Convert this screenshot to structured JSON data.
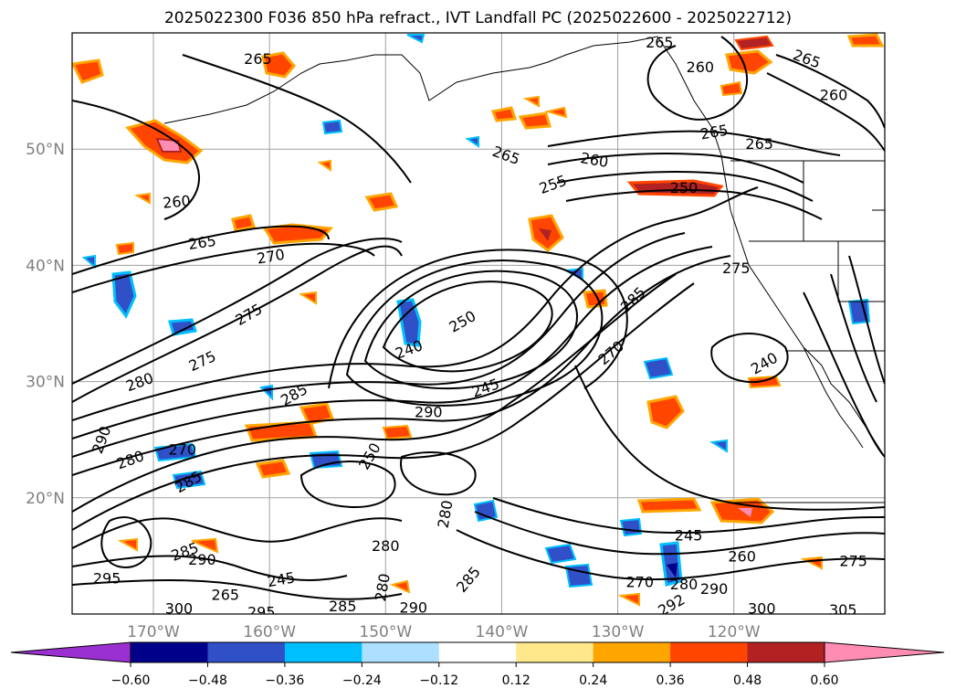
{
  "title": "2025022300 F036 850 hPa refract., IVT Landfall PC (2025022600 - 2025022712)",
  "map": {
    "lat_labels": [
      {
        "label": "50°N",
        "lat": 50
      },
      {
        "label": "40°N",
        "lat": 40
      },
      {
        "label": "30°N",
        "lat": 30
      },
      {
        "label": "20°N",
        "lat": 20
      }
    ],
    "lon_labels": [
      {
        "label": "170°W",
        "lon": -170
      },
      {
        "label": "160°W",
        "lon": -160
      },
      {
        "label": "150°W",
        "lon": -150
      },
      {
        "label": "140°W",
        "lon": -140
      },
      {
        "label": "130°W",
        "lon": -130
      },
      {
        "label": "120°W",
        "lon": -120
      }
    ],
    "extent": {
      "lon_min": -177,
      "lon_max": -107,
      "lat_min": 10,
      "lat_max": 60
    },
    "grid_color": "#a0a0a0"
  },
  "contour_labels": [
    {
      "text": "265",
      "lon": -161.0,
      "lat": 57.8,
      "rot": 0
    },
    {
      "text": "260",
      "lon": -168.0,
      "lat": 45.5,
      "rot": -5
    },
    {
      "text": "265",
      "lon": -165.8,
      "lat": 42.0,
      "rot": -8
    },
    {
      "text": "270",
      "lon": -159.9,
      "lat": 40.8,
      "rot": -10
    },
    {
      "text": "275",
      "lon": -161.8,
      "lat": 35.8,
      "rot": -30
    },
    {
      "text": "275",
      "lon": -165.8,
      "lat": 31.8,
      "rot": -25
    },
    {
      "text": "280",
      "lon": -171.2,
      "lat": 30.0,
      "rot": -20
    },
    {
      "text": "285",
      "lon": -157.9,
      "lat": 28.9,
      "rot": -30
    },
    {
      "text": "290",
      "lon": -174.5,
      "lat": 25.0,
      "rot": -70
    },
    {
      "text": "280",
      "lon": -172.0,
      "lat": 23.3,
      "rot": -20
    },
    {
      "text": "270",
      "lon": -167.5,
      "lat": 24.2,
      "rot": 0
    },
    {
      "text": "285",
      "lon": -167.0,
      "lat": 21.4,
      "rot": -30
    },
    {
      "text": "250",
      "lon": -151.4,
      "lat": 23.6,
      "rot": -60
    },
    {
      "text": "285",
      "lon": -167.3,
      "lat": 15.4,
      "rot": -20
    },
    {
      "text": "290",
      "lon": -165.8,
      "lat": 14.7,
      "rot": 0
    },
    {
      "text": "295",
      "lon": -174.0,
      "lat": 13.1,
      "rot": 0
    },
    {
      "text": "245",
      "lon": -159.0,
      "lat": 13.0,
      "rot": -10
    },
    {
      "text": "265",
      "lon": -163.8,
      "lat": 11.7,
      "rot": 0
    },
    {
      "text": "300",
      "lon": -167.8,
      "lat": 10.5,
      "rot": 0
    },
    {
      "text": "295",
      "lon": -160.7,
      "lat": 10.2,
      "rot": 0
    },
    {
      "text": "285",
      "lon": -153.7,
      "lat": 10.7,
      "rot": 0
    },
    {
      "text": "280",
      "lon": -150.3,
      "lat": 12.3,
      "rot": -80
    },
    {
      "text": "290",
      "lon": -147.6,
      "lat": 10.6,
      "rot": 0
    },
    {
      "text": "285",
      "lon": -142.9,
      "lat": 13.0,
      "rot": -50
    },
    {
      "text": "280",
      "lon": -150.0,
      "lat": 15.9,
      "rot": 0
    },
    {
      "text": "280",
      "lon": -144.9,
      "lat": 18.6,
      "rot": -80
    },
    {
      "text": "290",
      "lon": -146.3,
      "lat": 27.4,
      "rot": 0
    },
    {
      "text": "240",
      "lon": -148.0,
      "lat": 32.8,
      "rot": -20
    },
    {
      "text": "250",
      "lon": -143.4,
      "lat": 35.2,
      "rot": -30
    },
    {
      "text": "245",
      "lon": -141.4,
      "lat": 29.5,
      "rot": -20
    },
    {
      "text": "270",
      "lon": -130.6,
      "lat": 32.5,
      "rot": -40
    },
    {
      "text": "285",
      "lon": -128.7,
      "lat": 37.1,
      "rot": -45
    },
    {
      "text": "265",
      "lon": -139.6,
      "lat": 49.5,
      "rot": 20
    },
    {
      "text": "260",
      "lon": -132.0,
      "lat": 49.1,
      "rot": 10
    },
    {
      "text": "255",
      "lon": -135.6,
      "lat": 47.0,
      "rot": -20
    },
    {
      "text": "250",
      "lon": -124.3,
      "lat": 46.7,
      "rot": 0
    },
    {
      "text": "265",
      "lon": -126.4,
      "lat": 59.2,
      "rot": 0
    },
    {
      "text": "260",
      "lon": -122.9,
      "lat": 57.1,
      "rot": 0
    },
    {
      "text": "265",
      "lon": -113.7,
      "lat": 57.8,
      "rot": 20
    },
    {
      "text": "260",
      "lon": -111.4,
      "lat": 54.7,
      "rot": 0
    },
    {
      "text": "265",
      "lon": -121.7,
      "lat": 51.5,
      "rot": -10
    },
    {
      "text": "265",
      "lon": -117.8,
      "lat": 50.5,
      "rot": 0
    },
    {
      "text": "275",
      "lon": -119.8,
      "lat": 39.8,
      "rot": 0
    },
    {
      "text": "240",
      "lon": -117.4,
      "lat": 31.6,
      "rot": -30
    },
    {
      "text": "245",
      "lon": -123.9,
      "lat": 16.8,
      "rot": 0
    },
    {
      "text": "260",
      "lon": -119.3,
      "lat": 15.0,
      "rot": 0
    },
    {
      "text": "275",
      "lon": -109.7,
      "lat": 14.6,
      "rot": 0
    },
    {
      "text": "270",
      "lon": -128.1,
      "lat": 12.8,
      "rot": 0
    },
    {
      "text": "280",
      "lon": -124.3,
      "lat": 12.6,
      "rot": 0
    },
    {
      "text": "290",
      "lon": -121.7,
      "lat": 12.2,
      "rot": 0
    },
    {
      "text": "292",
      "lon": -125.4,
      "lat": 10.8,
      "rot": -30
    },
    {
      "text": "300",
      "lon": -117.6,
      "lat": 10.5,
      "rot": 0
    },
    {
      "text": "305",
      "lon": -110.6,
      "lat": 10.4,
      "rot": 0
    }
  ],
  "colorbar": {
    "ticks": [
      "−0.60",
      "−0.48",
      "−0.36",
      "−0.24",
      "−0.12",
      "0.12",
      "0.24",
      "0.36",
      "0.48",
      "0.60"
    ],
    "under_color": "#9b30d0",
    "over_color": "#ff8cb3",
    "colors": [
      "#00008b",
      "#3050c8",
      "#00bfff",
      "#ade0ff",
      "#ffffff",
      "#ffe88c",
      "#ffa500",
      "#ff4500",
      "#b22222"
    ]
  },
  "fill_colors": {
    "neg_outer": "#00bfff",
    "neg_mid": "#3050c8",
    "neg_inner": "#00008b",
    "pos_outer": "#ffa500",
    "pos_mid": "#ff4500",
    "pos_inner": "#b22222",
    "pos_core": "#ff8cb3",
    "pos_rim": "#ffe88c",
    "neg_rim": "#ade0ff"
  }
}
